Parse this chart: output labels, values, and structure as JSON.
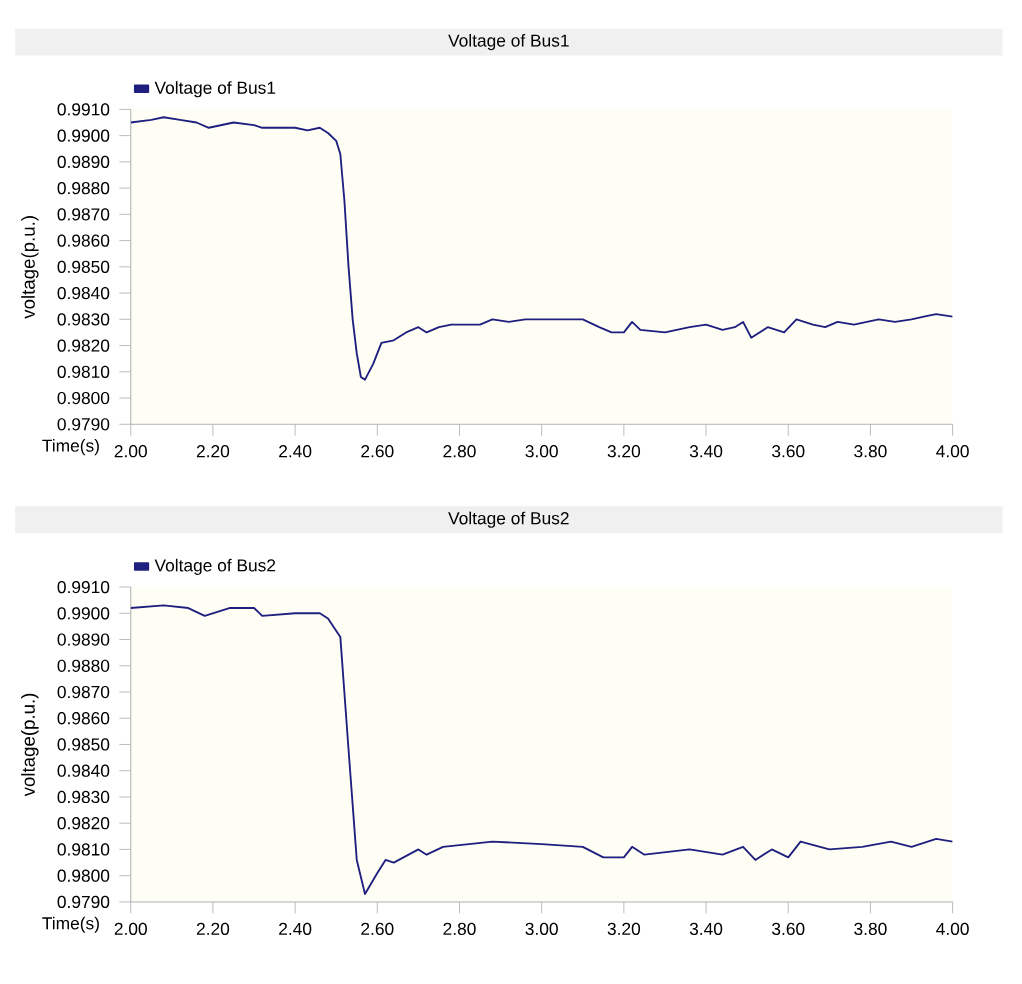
{
  "chart_data": [
    {
      "type": "line",
      "title": "Voltage of Bus1",
      "xlabel": "Time(s)",
      "ylabel": "voltage(p.u.)",
      "legend": "top left",
      "grid": false,
      "marker": "none",
      "line_style": "solid",
      "xlim": [
        2.0,
        4.0
      ],
      "ylim": [
        0.979,
        0.991
      ],
      "xticks": [
        {
          "value": 2.0,
          "label": "2.00"
        },
        {
          "value": 2.2,
          "label": "2.20"
        },
        {
          "value": 2.4,
          "label": "2.40"
        },
        {
          "value": 2.6,
          "label": "2.60"
        },
        {
          "value": 2.8,
          "label": "2.80"
        },
        {
          "value": 3.0,
          "label": "3.00"
        },
        {
          "value": 3.2,
          "label": "3.20"
        },
        {
          "value": 3.4,
          "label": "3.40"
        },
        {
          "value": 3.6,
          "label": "3.60"
        },
        {
          "value": 3.8,
          "label": "3.80"
        },
        {
          "value": 4.0,
          "label": "4.00"
        }
      ],
      "yticks": [
        {
          "value": 0.979,
          "label": "0.9790"
        },
        {
          "value": 0.98,
          "label": "0.9800"
        },
        {
          "value": 0.981,
          "label": "0.9810"
        },
        {
          "value": 0.982,
          "label": "0.9820"
        },
        {
          "value": 0.983,
          "label": "0.9830"
        },
        {
          "value": 0.984,
          "label": "0.9840"
        },
        {
          "value": 0.985,
          "label": "0.9850"
        },
        {
          "value": 0.986,
          "label": "0.9860"
        },
        {
          "value": 0.987,
          "label": "0.9870"
        },
        {
          "value": 0.988,
          "label": "0.9880"
        },
        {
          "value": 0.989,
          "label": "0.9890"
        },
        {
          "value": 0.99,
          "label": "0.9900"
        },
        {
          "value": 0.991,
          "label": "0.9910"
        }
      ],
      "series": [
        {
          "name": "Voltage of Bus1",
          "color": "#1f1f80",
          "x": [
            2.0,
            2.05,
            2.08,
            2.12,
            2.16,
            2.19,
            2.22,
            2.25,
            2.3,
            2.32,
            2.4,
            2.43,
            2.46,
            2.48,
            2.5,
            2.51,
            2.52,
            2.53,
            2.54,
            2.55,
            2.56,
            2.57,
            2.59,
            2.61,
            2.64,
            2.67,
            2.7,
            2.72,
            2.75,
            2.78,
            2.85,
            2.88,
            2.92,
            2.96,
            3.02,
            3.1,
            3.14,
            3.17,
            3.2,
            3.22,
            3.24,
            3.3,
            3.36,
            3.4,
            3.44,
            3.47,
            3.49,
            3.51,
            3.55,
            3.59,
            3.62,
            3.66,
            3.69,
            3.72,
            3.76,
            3.82,
            3.86,
            3.9,
            3.93,
            3.96,
            4.0
          ],
          "values": [
            0.9905,
            0.9906,
            0.9907,
            0.9906,
            0.9905,
            0.9903,
            0.9904,
            0.9905,
            0.9904,
            0.9903,
            0.9903,
            0.9902,
            0.9903,
            0.9901,
            0.9898,
            0.9893,
            0.9875,
            0.985,
            0.983,
            0.9817,
            0.9808,
            0.9807,
            0.9813,
            0.9821,
            0.9822,
            0.9825,
            0.9827,
            0.9825,
            0.9827,
            0.9828,
            0.9828,
            0.983,
            0.9829,
            0.983,
            0.983,
            0.983,
            0.9827,
            0.9825,
            0.9825,
            0.9829,
            0.9826,
            0.9825,
            0.9827,
            0.9828,
            0.9826,
            0.9827,
            0.9829,
            0.9823,
            0.9827,
            0.9825,
            0.983,
            0.9828,
            0.9827,
            0.9829,
            0.9828,
            0.983,
            0.9829,
            0.983,
            0.9831,
            0.9832,
            0.9831
          ]
        }
      ]
    },
    {
      "type": "line",
      "title": "Voltage of Bus2",
      "xlabel": "Time(s)",
      "ylabel": "voltage(p.u.)",
      "legend": "top left",
      "grid": false,
      "marker": "none",
      "line_style": "solid",
      "xlim": [
        2.0,
        4.0
      ],
      "ylim": [
        0.979,
        0.991
      ],
      "xticks": [
        {
          "value": 2.0,
          "label": "2.00"
        },
        {
          "value": 2.2,
          "label": "2.20"
        },
        {
          "value": 2.4,
          "label": "2.40"
        },
        {
          "value": 2.6,
          "label": "2.60"
        },
        {
          "value": 2.8,
          "label": "2.80"
        },
        {
          "value": 3.0,
          "label": "3.00"
        },
        {
          "value": 3.2,
          "label": "3.20"
        },
        {
          "value": 3.4,
          "label": "3.40"
        },
        {
          "value": 3.6,
          "label": "3.60"
        },
        {
          "value": 3.8,
          "label": "3.80"
        },
        {
          "value": 4.0,
          "label": "4.00"
        }
      ],
      "yticks": [
        {
          "value": 0.979,
          "label": "0.9790"
        },
        {
          "value": 0.98,
          "label": "0.9800"
        },
        {
          "value": 0.981,
          "label": "0.9810"
        },
        {
          "value": 0.982,
          "label": "0.9820"
        },
        {
          "value": 0.983,
          "label": "0.9830"
        },
        {
          "value": 0.984,
          "label": "0.9840"
        },
        {
          "value": 0.985,
          "label": "0.9850"
        },
        {
          "value": 0.986,
          "label": "0.9860"
        },
        {
          "value": 0.987,
          "label": "0.9870"
        },
        {
          "value": 0.988,
          "label": "0.9880"
        },
        {
          "value": 0.989,
          "label": "0.9890"
        },
        {
          "value": 0.99,
          "label": "0.9900"
        },
        {
          "value": 0.991,
          "label": "0.9910"
        }
      ],
      "series": [
        {
          "name": "Voltage of Bus2",
          "color": "#1f1f80",
          "x": [
            2.0,
            2.08,
            2.14,
            2.18,
            2.24,
            2.3,
            2.32,
            2.4,
            2.46,
            2.48,
            2.51,
            2.53,
            2.55,
            2.57,
            2.6,
            2.62,
            2.64,
            2.7,
            2.72,
            2.76,
            2.88,
            3.0,
            3.1,
            3.15,
            3.2,
            3.22,
            3.25,
            3.36,
            3.44,
            3.49,
            3.52,
            3.56,
            3.6,
            3.63,
            3.7,
            3.78,
            3.85,
            3.9,
            3.96,
            4.0
          ],
          "values": [
            0.9902,
            0.9903,
            0.9902,
            0.9899,
            0.9902,
            0.9902,
            0.9899,
            0.99,
            0.99,
            0.9898,
            0.9891,
            0.9848,
            0.9806,
            0.9793,
            0.9801,
            0.9806,
            0.9805,
            0.981,
            0.9808,
            0.9811,
            0.9813,
            0.9812,
            0.9811,
            0.9807,
            0.9807,
            0.9811,
            0.9808,
            0.981,
            0.9808,
            0.9811,
            0.9806,
            0.981,
            0.9807,
            0.9813,
            0.981,
            0.9811,
            0.9813,
            0.9811,
            0.9814,
            0.9813
          ]
        }
      ]
    }
  ]
}
